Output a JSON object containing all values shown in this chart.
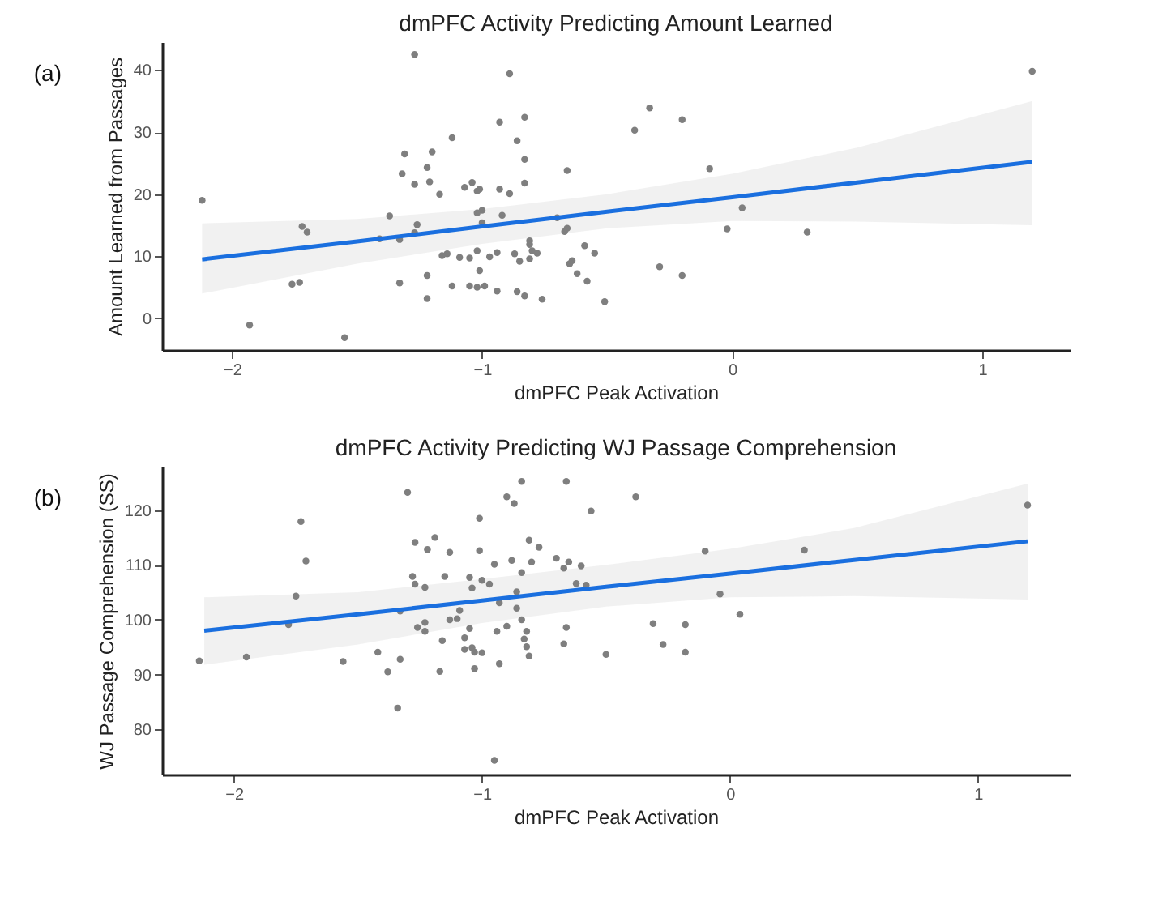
{
  "chart_data": [
    {
      "type": "scatter",
      "title": "dmPFC Activity Predicting Amount Learned",
      "xlabel": "dmPFC Peak Activation",
      "ylabel": "Amount Learned from Passages",
      "annotations": [
        "(a)"
      ],
      "xlim": [
        -2.28,
        1.35
      ],
      "ylim": [
        -5.1,
        44.5
      ],
      "xticks": [
        -2,
        -1,
        0,
        1
      ],
      "yticks": [
        0,
        10,
        20,
        30,
        40
      ],
      "grid": false,
      "series": [
        {
          "marker": "circle",
          "color": "#7f7f7f",
          "x": [
            -2.12,
            -1.93,
            -1.55,
            -1.72,
            -1.7,
            -1.76,
            -1.73,
            -1.37,
            -1.41,
            -1.33,
            -1.33,
            -1.31,
            -1.32,
            -1.27,
            -1.27,
            -1.26,
            -1.27,
            -1.22,
            -1.2,
            -1.21,
            -1.22,
            -1.22,
            -1.17,
            -1.16,
            -1.14,
            -1.12,
            -1.12,
            -1.09,
            -1.05,
            -1.07,
            -1.04,
            -1.02,
            -1.01,
            -1.02,
            -1.0,
            -1.0,
            -1.02,
            -1.01,
            -1.05,
            -1.02,
            -0.99,
            -0.97,
            -0.94,
            -0.94,
            -0.93,
            -0.93,
            -0.92,
            -0.89,
            -0.89,
            -0.87,
            -0.86,
            -0.86,
            -0.85,
            -0.83,
            -0.83,
            -0.83,
            -0.83,
            -0.81,
            -0.81,
            -0.81,
            -0.8,
            -0.78,
            -0.76,
            -0.7,
            -0.67,
            -0.66,
            -0.66,
            -0.65,
            -0.64,
            -0.62,
            -0.59,
            -0.58,
            -0.55,
            -0.51,
            -0.39,
            -0.33,
            -0.29,
            -0.2,
            -0.2,
            -0.09,
            -0.02,
            0.04,
            0.3,
            1.2
          ],
          "values": [
            19.0,
            -1.1,
            -3.1,
            14.8,
            13.9,
            5.5,
            5.8,
            16.5,
            12.8,
            5.7,
            12.7,
            26.5,
            23.3,
            42.5,
            21.6,
            15.1,
            13.8,
            24.3,
            26.8,
            22.0,
            6.9,
            3.2,
            20.0,
            10.1,
            10.4,
            29.1,
            5.2,
            9.8,
            9.7,
            21.1,
            21.9,
            20.5,
            20.8,
            17.0,
            17.4,
            15.4,
            10.9,
            7.7,
            5.2,
            5.0,
            5.2,
            9.9,
            10.6,
            4.4,
            31.6,
            20.8,
            16.6,
            39.4,
            20.1,
            10.4,
            28.6,
            4.3,
            9.2,
            32.4,
            25.6,
            21.8,
            3.6,
            12.5,
            11.9,
            9.6,
            10.9,
            10.5,
            3.1,
            16.2,
            14.0,
            14.5,
            23.8,
            8.8,
            9.3,
            7.2,
            11.7,
            6.0,
            10.5,
            2.7,
            30.3,
            33.9,
            8.3,
            32.0,
            6.9,
            24.1,
            14.4,
            17.8,
            13.9,
            39.8
          ]
        },
        {
          "type": "line",
          "line_style": "solid",
          "marker": "none",
          "color": "#1a6fdf",
          "x": [
            -2.12,
            -1.5,
            -1.0,
            -0.5,
            0,
            0.5,
            1.2
          ],
          "values": [
            9.5,
            12.4,
            14.8,
            17.2,
            19.5,
            21.9,
            25.2
          ],
          "lower": [
            4.0,
            8.8,
            12.0,
            14.5,
            15.7,
            15.6,
            15.0
          ],
          "upper": [
            15.3,
            16.0,
            17.6,
            20.0,
            23.3,
            27.5,
            35.0
          ]
        }
      ]
    },
    {
      "type": "scatter",
      "title": "dmPFC Activity Predicting WJ Passage Comprehension",
      "xlabel": "dmPFC Peak Activation",
      "ylabel": "WJ Passage Comprehension (SS)",
      "annotations": [
        "(b)"
      ],
      "xlim": [
        -2.29,
        1.37
      ],
      "ylim": [
        71.8,
        127.9
      ],
      "xticks": [
        -2,
        -1,
        0,
        1
      ],
      "yticks": [
        80,
        90,
        100,
        110,
        120
      ],
      "grid": false,
      "series": [
        {
          "marker": "circle",
          "color": "#7f7f7f",
          "x": [
            -2.14,
            -1.95,
            -1.78,
            -1.75,
            -1.73,
            -1.71,
            -1.56,
            -1.42,
            -1.38,
            -1.34,
            -1.33,
            -1.33,
            -1.3,
            -1.28,
            -1.27,
            -1.27,
            -1.26,
            -1.23,
            -1.23,
            -1.23,
            -1.22,
            -1.19,
            -1.17,
            -1.16,
            -1.15,
            -1.13,
            -1.13,
            -1.1,
            -1.09,
            -1.07,
            -1.07,
            -1.05,
            -1.05,
            -1.04,
            -1.04,
            -1.03,
            -1.03,
            -1.01,
            -1.01,
            -1.0,
            -1.0,
            -0.97,
            -0.95,
            -0.95,
            -0.94,
            -0.93,
            -0.93,
            -0.9,
            -0.9,
            -0.88,
            -0.87,
            -0.86,
            -0.86,
            -0.84,
            -0.84,
            -0.84,
            -0.83,
            -0.82,
            -0.82,
            -0.81,
            -0.81,
            -0.8,
            -0.77,
            -0.7,
            -0.67,
            -0.67,
            -0.66,
            -0.66,
            -0.65,
            -0.62,
            -0.6,
            -0.58,
            -0.56,
            -0.5,
            -0.38,
            -0.31,
            -0.27,
            -0.18,
            -0.18,
            -0.1,
            -0.04,
            0.04,
            0.3,
            1.2
          ],
          "values": [
            92.5,
            93.2,
            99.1,
            104.3,
            117.9,
            110.7,
            92.4,
            94.1,
            90.5,
            83.9,
            92.8,
            101.6,
            123.2,
            107.9,
            106.5,
            114.1,
            98.6,
            97.9,
            99.5,
            105.9,
            112.8,
            115.0,
            90.6,
            96.2,
            107.9,
            112.3,
            100.0,
            100.2,
            101.7,
            96.7,
            94.6,
            107.7,
            98.4,
            94.9,
            105.8,
            94.1,
            91.1,
            112.6,
            118.5,
            94.0,
            107.2,
            106.5,
            74.4,
            110.1,
            97.9,
            103.1,
            92.0,
            122.4,
            98.8,
            110.8,
            121.2,
            105.1,
            102.1,
            125.2,
            108.6,
            100.0,
            96.5,
            97.9,
            95.1,
            114.5,
            93.4,
            110.5,
            113.2,
            111.2,
            95.6,
            109.4,
            125.2,
            98.6,
            110.5,
            106.6,
            109.8,
            106.3,
            119.8,
            93.7,
            122.4,
            99.3,
            95.5,
            99.1,
            94.1,
            112.5,
            104.7,
            101.0,
            112.7,
            120.9
          ]
        },
        {
          "type": "line",
          "line_style": "solid",
          "marker": "none",
          "color": "#1a6fdf",
          "x": [
            -2.12,
            -1.5,
            -1.0,
            -0.5,
            0,
            0.5,
            1.2
          ],
          "values": [
            98.0,
            101.0,
            103.5,
            106.0,
            108.4,
            110.9,
            114.3
          ],
          "lower": [
            91.8,
            95.5,
            99.4,
            102.4,
            104.1,
            104.3,
            103.7
          ],
          "upper": [
            104.1,
            105.0,
            107.4,
            110.0,
            112.9,
            116.7,
            124.8
          ]
        }
      ]
    }
  ]
}
